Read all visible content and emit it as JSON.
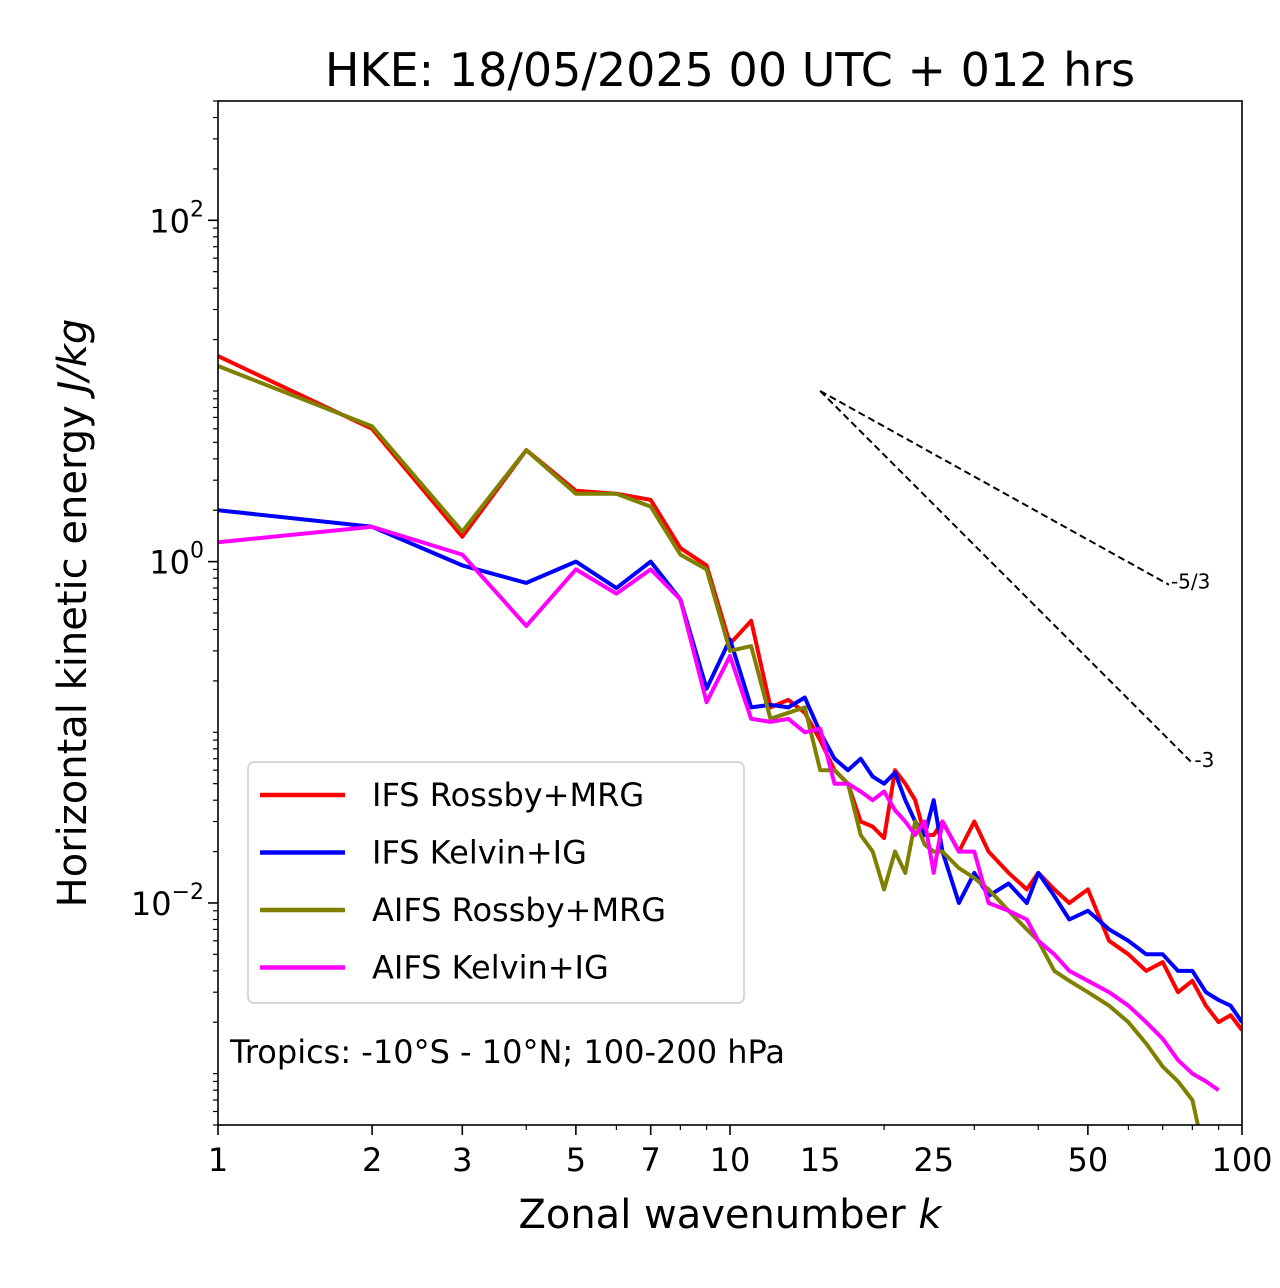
{
  "chart_data": {
    "type": "line",
    "title": "HKE: 18/05/2025 00 UTC + 012 hrs",
    "xlabel": "Zonal wavenumber",
    "xlabel_var": "k",
    "ylabel": "Horizontal kinetic energy",
    "ylabel_unit": "J/kg",
    "x_scale": "log",
    "y_scale": "log",
    "xlim": [
      1,
      100
    ],
    "ylim": [
      0.0005,
      500
    ],
    "x_ticks": [
      1,
      2,
      3,
      5,
      7,
      10,
      15,
      25,
      50,
      100
    ],
    "x_tick_labels": [
      "1",
      "2",
      "3",
      "5",
      "7",
      "10",
      "15",
      "25",
      "50",
      "100"
    ],
    "y_ticks": [
      {
        "value": 100,
        "base": "10",
        "exp": "2"
      },
      {
        "value": 1,
        "base": "10",
        "exp": "0"
      },
      {
        "value": 0.01,
        "base": "10",
        "exp": "−2"
      }
    ],
    "grid": false,
    "legend_position": "lower-left",
    "annotation": "Tropics: -10°S - 10°N; 100-200 hPa",
    "series": [
      {
        "name": "IFS Rossby+MRG",
        "color": "#ff0000",
        "x": [
          1,
          2,
          3,
          4,
          5,
          6,
          7,
          8,
          9,
          10,
          11,
          12,
          13,
          14,
          15,
          16,
          17,
          18,
          19,
          20,
          21,
          22,
          23,
          24,
          25,
          26,
          28,
          30,
          32,
          35,
          38,
          40,
          43,
          46,
          50,
          55,
          60,
          65,
          70,
          75,
          80,
          85,
          90,
          95,
          100
        ],
        "values": [
          16,
          6.0,
          1.4,
          4.5,
          2.6,
          2.5,
          2.3,
          1.2,
          0.95,
          0.33,
          0.45,
          0.14,
          0.155,
          0.13,
          0.09,
          0.06,
          0.05,
          0.03,
          0.028,
          0.024,
          0.06,
          0.05,
          0.04,
          0.025,
          0.025,
          0.03,
          0.02,
          0.03,
          0.02,
          0.015,
          0.012,
          0.015,
          0.012,
          0.01,
          0.012,
          0.006,
          0.005,
          0.004,
          0.0045,
          0.003,
          0.0035,
          0.0025,
          0.002,
          0.0022,
          0.0018
        ]
      },
      {
        "name": "IFS Kelvin+IG",
        "color": "#0000ff",
        "x": [
          1,
          2,
          3,
          4,
          5,
          6,
          7,
          8,
          9,
          10,
          11,
          12,
          13,
          14,
          15,
          16,
          17,
          18,
          19,
          20,
          21,
          22,
          23,
          24,
          25,
          26,
          28,
          30,
          32,
          35,
          38,
          40,
          43,
          46,
          50,
          55,
          60,
          65,
          70,
          75,
          80,
          85,
          90,
          95,
          100
        ],
        "values": [
          2.0,
          1.6,
          0.95,
          0.75,
          1.0,
          0.7,
          1.0,
          0.6,
          0.18,
          0.35,
          0.14,
          0.145,
          0.14,
          0.16,
          0.1,
          0.07,
          0.06,
          0.07,
          0.055,
          0.05,
          0.058,
          0.04,
          0.03,
          0.025,
          0.04,
          0.02,
          0.01,
          0.015,
          0.011,
          0.013,
          0.01,
          0.015,
          0.011,
          0.008,
          0.009,
          0.007,
          0.006,
          0.005,
          0.005,
          0.004,
          0.004,
          0.003,
          0.0027,
          0.0025,
          0.002
        ]
      },
      {
        "name": "AIFS Rossby+MRG",
        "color": "#808000",
        "x": [
          1,
          2,
          3,
          4,
          5,
          6,
          7,
          8,
          9,
          10,
          11,
          12,
          13,
          14,
          15,
          16,
          17,
          18,
          19,
          20,
          21,
          22,
          23,
          24,
          25,
          26,
          28,
          30,
          32,
          35,
          38,
          40,
          43,
          46,
          50,
          55,
          60,
          65,
          70,
          75,
          80,
          82
        ],
        "values": [
          14,
          6.2,
          1.5,
          4.5,
          2.5,
          2.5,
          2.1,
          1.1,
          0.9,
          0.3,
          0.32,
          0.12,
          0.13,
          0.14,
          0.06,
          0.06,
          0.05,
          0.025,
          0.02,
          0.012,
          0.02,
          0.015,
          0.03,
          0.022,
          0.02,
          0.02,
          0.016,
          0.014,
          0.012,
          0.009,
          0.007,
          0.006,
          0.004,
          0.0035,
          0.003,
          0.0025,
          0.002,
          0.0015,
          0.0011,
          0.0009,
          0.0007,
          0.0005
        ]
      },
      {
        "name": "AIFS Kelvin+IG",
        "color": "#ff00ff",
        "x": [
          1,
          2,
          3,
          4,
          5,
          6,
          7,
          8,
          9,
          10,
          11,
          12,
          13,
          14,
          15,
          16,
          17,
          18,
          19,
          20,
          21,
          22,
          23,
          24,
          25,
          26,
          28,
          30,
          32,
          35,
          38,
          40,
          43,
          46,
          50,
          55,
          60,
          65,
          70,
          75,
          80,
          85,
          90
        ],
        "values": [
          1.3,
          1.6,
          1.1,
          0.42,
          0.9,
          0.65,
          0.9,
          0.6,
          0.15,
          0.28,
          0.12,
          0.115,
          0.12,
          0.1,
          0.105,
          0.05,
          0.05,
          0.045,
          0.04,
          0.045,
          0.035,
          0.03,
          0.025,
          0.03,
          0.015,
          0.03,
          0.02,
          0.02,
          0.01,
          0.009,
          0.008,
          0.006,
          0.005,
          0.004,
          0.0035,
          0.003,
          0.0025,
          0.002,
          0.0016,
          0.0012,
          0.001,
          0.0009,
          0.0008
        ]
      }
    ],
    "reference_slopes": [
      {
        "label": "-5/3",
        "slope": -1.6667,
        "x_start": 15,
        "x_end": 72,
        "y_start": 10
      },
      {
        "label": "-3",
        "slope": -3,
        "x_start": 15,
        "x_end": 80,
        "y_start": 10
      }
    ]
  }
}
